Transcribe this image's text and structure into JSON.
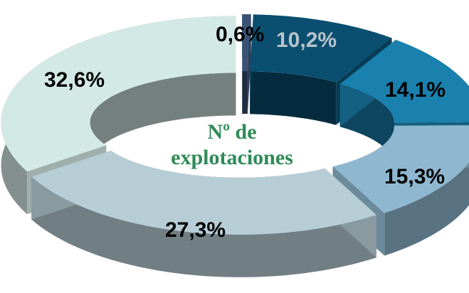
{
  "chart_data": {
    "type": "pie",
    "style": "exploded 3D donut",
    "center_label_lines": [
      "Nº de",
      "explotaciones"
    ],
    "center_label_color": "#2e8b57",
    "slices": [
      {
        "label": "0,6%",
        "value": 0.6,
        "color": "#3a5275",
        "label_color": "#000000"
      },
      {
        "label": "10,2%",
        "value": 10.2,
        "color": "#0a4f70",
        "label_color": "#b8c4cc"
      },
      {
        "label": "14,1%",
        "value": 14.1,
        "color": "#1a80ad",
        "label_color": "#000000"
      },
      {
        "label": "15,3%",
        "value": 15.3,
        "color": "#8fb8d0",
        "label_color": "#000000"
      },
      {
        "label": "27,3%",
        "value": 27.3,
        "color": "#b7cdd6",
        "label_color": "#000000"
      },
      {
        "label": "32,6%",
        "value": 32.6,
        "color": "#d3e9e5",
        "label_color": "#000000"
      }
    ]
  }
}
